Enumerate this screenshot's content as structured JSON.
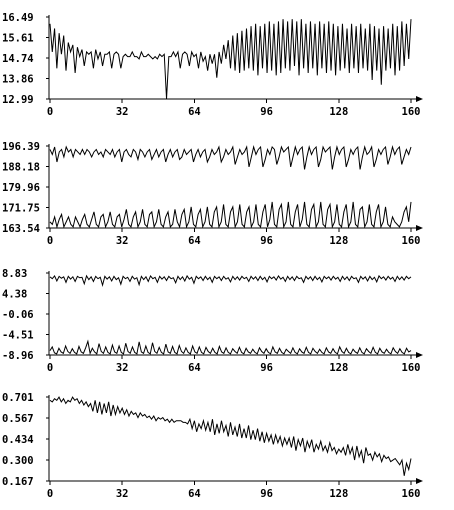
{
  "chart_data": [
    {
      "type": "line",
      "title": "",
      "xlabel": "",
      "ylabel": "",
      "xlim": [
        0,
        160
      ],
      "ylim": [
        12.99,
        16.49
      ],
      "x_ticks": [
        "0",
        "32",
        "64",
        "96",
        "128",
        "160"
      ],
      "y_ticks": [
        "16.49",
        "15.61",
        "14.74",
        "13.86",
        "12.99"
      ],
      "series": [
        {
          "values": [
            16.2,
            15.0,
            16.0,
            14.3,
            15.8,
            14.9,
            15.7,
            14.2,
            15.4,
            15.0,
            15.3,
            14.1,
            15.2,
            14.8,
            15.1,
            14.4,
            15.0,
            14.9,
            15.0,
            14.3,
            15.1,
            14.7,
            15.0,
            14.4,
            14.9,
            14.9,
            15.0,
            14.3,
            14.9,
            15.0,
            14.9,
            14.3,
            14.8,
            14.9,
            14.8,
            14.8,
            15.0,
            14.8,
            14.8,
            14.7,
            15.0,
            14.8,
            14.8,
            14.9,
            14.8,
            14.7,
            14.8,
            14.7,
            14.9,
            14.8,
            14.9,
            13.0,
            14.8,
            14.8,
            15.0,
            14.8,
            15.0,
            14.3,
            14.9,
            15.0,
            14.9,
            14.4,
            15.0,
            14.8,
            14.9,
            14.3,
            15.0,
            14.6,
            14.8,
            14.2,
            14.9,
            14.5,
            14.9,
            13.9,
            15.0,
            14.5,
            15.3,
            14.7,
            15.5,
            14.3,
            15.7,
            14.2,
            15.8,
            14.1,
            15.9,
            14.2,
            16.0,
            14.3,
            16.1,
            14.2,
            16.2,
            14.0,
            16.1,
            14.3,
            16.2,
            14.1,
            16.3,
            14.2,
            16.2,
            14.0,
            16.3,
            14.1,
            16.4,
            14.3,
            16.3,
            14.2,
            16.4,
            14.4,
            16.3,
            14.0,
            16.4,
            14.3,
            16.2,
            14.1,
            16.3,
            14.3,
            16.2,
            14.0,
            16.3,
            14.3,
            16.2,
            14.1,
            16.3,
            14.2,
            16.2,
            14.0,
            16.1,
            14.2,
            16.2,
            14.3,
            16.0,
            14.1,
            16.2,
            14.3,
            16.1,
            14.1,
            16.2,
            14.3,
            16.0,
            14.2,
            16.2,
            13.8,
            16.1,
            14.2,
            16.0,
            13.6,
            16.1,
            14.2,
            16.0,
            14.3,
            16.2,
            14.0,
            16.1,
            14.2,
            16.3,
            14.4,
            16.2,
            14.7,
            16.4
          ]
        }
      ]
    },
    {
      "type": "line",
      "title": "",
      "xlabel": "",
      "ylabel": "",
      "xlim": [
        0,
        160
      ],
      "ylim": [
        163.54,
        196.39
      ],
      "x_ticks": [
        "0",
        "32",
        "64",
        "96",
        "128",
        "160"
      ],
      "y_ticks": [
        "196.39",
        "188.18",
        "179.96",
        "171.75",
        "163.54"
      ],
      "series": [
        {
          "values": [
            195,
            193,
            196,
            190,
            194,
            195,
            192,
            196,
            194,
            195,
            192,
            195,
            194,
            193,
            195,
            193,
            195,
            194,
            192,
            194,
            195,
            193,
            194,
            192,
            195,
            194,
            193,
            195,
            192,
            194,
            195,
            190,
            194,
            195,
            193,
            192,
            195,
            194,
            191,
            195,
            194,
            192,
            194,
            195,
            191,
            193,
            195,
            192,
            194,
            195,
            190,
            193,
            195,
            192,
            194,
            195,
            191,
            192,
            195,
            193,
            194,
            195,
            190,
            193,
            195,
            192,
            194,
            195,
            190,
            192,
            195,
            193,
            194,
            196,
            190,
            192,
            195,
            193,
            194,
            196,
            189,
            192,
            195,
            193,
            194,
            196,
            188,
            192,
            196,
            193,
            195,
            196,
            188,
            191,
            195,
            193,
            196,
            195,
            189,
            192,
            196,
            194,
            195,
            196,
            188,
            192,
            196,
            193,
            195,
            196,
            187,
            192,
            196,
            193,
            195,
            196,
            188,
            191,
            196,
            194,
            195,
            196,
            187,
            192,
            196,
            193,
            195,
            196,
            188,
            191,
            195,
            193,
            195,
            196,
            187,
            192,
            196,
            193,
            194,
            196,
            188,
            191,
            195,
            193,
            195,
            196,
            189,
            192,
            196,
            193,
            195,
            196,
            189,
            192,
            195,
            193,
            196
          ]
        },
        {
          "values": [
            166,
            165,
            168,
            164,
            167,
            169,
            164,
            166,
            168,
            165,
            164,
            168,
            166,
            164,
            167,
            169,
            165,
            164,
            167,
            170,
            165,
            164,
            168,
            169,
            164,
            166,
            170,
            165,
            164,
            168,
            169,
            164,
            167,
            171,
            165,
            164,
            168,
            170,
            164,
            166,
            171,
            165,
            164,
            169,
            170,
            164,
            166,
            171,
            165,
            164,
            168,
            170,
            164,
            165,
            171,
            166,
            164,
            169,
            171,
            164,
            166,
            172,
            165,
            164,
            169,
            171,
            164,
            166,
            172,
            165,
            164,
            170,
            172,
            164,
            166,
            173,
            165,
            164,
            170,
            172,
            164,
            166,
            173,
            165,
            164,
            170,
            172,
            164,
            166,
            173,
            165,
            164,
            170,
            173,
            164,
            167,
            174,
            165,
            164,
            171,
            173,
            164,
            166,
            174,
            165,
            164,
            170,
            173,
            164,
            167,
            174,
            165,
            164,
            171,
            173,
            164,
            166,
            174,
            165,
            164,
            171,
            173,
            164,
            166,
            173,
            165,
            164,
            170,
            173,
            164,
            166,
            174,
            165,
            164,
            171,
            172,
            164,
            166,
            173,
            165,
            164,
            170,
            173,
            164,
            166,
            172,
            165,
            164,
            168,
            166,
            165,
            164,
            166,
            170,
            172,
            166,
            174
          ]
        }
      ]
    },
    {
      "type": "line",
      "title": "",
      "xlabel": "",
      "ylabel": "",
      "xlim": [
        0,
        160
      ],
      "ylim": [
        -8.96,
        8.83
      ],
      "x_ticks": [
        "0",
        "32",
        "64",
        "96",
        "128",
        "160"
      ],
      "y_ticks": [
        "8.83",
        "4.38",
        "-0.06",
        "-4.51",
        "-8.96"
      ],
      "series": [
        {
          "values": [
            8.0,
            7.6,
            8.2,
            7.1,
            8.1,
            7.7,
            8.0,
            6.8,
            8.1,
            7.5,
            8.0,
            7.0,
            8.1,
            7.8,
            7.9,
            6.5,
            8.2,
            7.4,
            8.0,
            7.0,
            8.1,
            7.6,
            7.9,
            6.2,
            8.1,
            7.5,
            8.0,
            7.1,
            8.1,
            7.4,
            7.8,
            6.4,
            8.1,
            7.6,
            7.9,
            7.0,
            8.1,
            7.5,
            7.8,
            6.3,
            8.1,
            7.4,
            8.0,
            7.0,
            8.2,
            7.6,
            7.9,
            6.8,
            8.1,
            7.5,
            8.0,
            7.2,
            8.1,
            7.6,
            7.8,
            6.7,
            8.1,
            7.4,
            8.0,
            7.1,
            8.2,
            7.5,
            7.9,
            6.6,
            8.1,
            7.6,
            8.0,
            7.2,
            8.1,
            7.4,
            7.9,
            6.8,
            8.1,
            7.6,
            8.0,
            7.2,
            8.1,
            7.5,
            7.8,
            6.9,
            8.1,
            7.4,
            8.0,
            7.3,
            8.1,
            7.6,
            7.9,
            7.0,
            8.1,
            7.5,
            8.0,
            7.2,
            8.1,
            7.4,
            7.9,
            6.9,
            8.1,
            7.6,
            8.0,
            7.3,
            8.2,
            7.5,
            7.9,
            7.0,
            8.1,
            7.4,
            8.0,
            7.2,
            8.1,
            7.6,
            7.8,
            6.8,
            8.1,
            7.5,
            8.0,
            7.2,
            8.1,
            7.4,
            7.9,
            6.9,
            8.1,
            7.6,
            8.0,
            7.3,
            8.1,
            7.5,
            7.9,
            7.0,
            8.1,
            7.4,
            8.0,
            7.2,
            8.1,
            7.6,
            7.8,
            6.8,
            8.1,
            7.5,
            8.0,
            7.1,
            8.1,
            7.4,
            7.9,
            6.9,
            8.2,
            7.6,
            8.0,
            7.3,
            8.1,
            7.5,
            7.9,
            7.0,
            8.1,
            7.4,
            8.0,
            7.3,
            8.1,
            7.6,
            8.0
          ]
        },
        {
          "values": [
            -8.0,
            -7.2,
            -8.5,
            -8.7,
            -7.5,
            -8.3,
            -8.6,
            -7.0,
            -8.2,
            -8.6,
            -7.6,
            -8.4,
            -8.7,
            -7.1,
            -8.3,
            -8.6,
            -7.4,
            -6.0,
            -8.6,
            -7.5,
            -8.3,
            -8.7,
            -6.5,
            -8.2,
            -8.6,
            -7.2,
            -8.4,
            -8.7,
            -6.8,
            -8.3,
            -8.6,
            -7.0,
            -8.4,
            -8.7,
            -6.4,
            -8.2,
            -8.6,
            -7.2,
            -8.4,
            -8.7,
            -6.1,
            -8.3,
            -8.6,
            -7.0,
            -8.4,
            -8.7,
            -6.3,
            -8.2,
            -8.6,
            -7.3,
            -8.4,
            -8.7,
            -6.6,
            -8.3,
            -8.6,
            -7.1,
            -8.4,
            -8.7,
            -6.9,
            -8.2,
            -8.6,
            -7.4,
            -8.4,
            -8.7,
            -7.0,
            -8.3,
            -8.6,
            -7.2,
            -8.4,
            -8.7,
            -7.3,
            -8.2,
            -8.6,
            -7.5,
            -8.4,
            -8.7,
            -7.1,
            -8.3,
            -8.6,
            -7.4,
            -8.4,
            -8.7,
            -7.6,
            -8.2,
            -8.6,
            -7.3,
            -8.4,
            -8.7,
            -7.5,
            -8.3,
            -8.6,
            -7.7,
            -8.4,
            -8.7,
            -7.4,
            -8.2,
            -8.6,
            -7.6,
            -8.4,
            -8.7,
            -7.2,
            -8.3,
            -8.6,
            -7.5,
            -8.4,
            -8.7,
            -7.7,
            -8.2,
            -8.6,
            -7.4,
            -8.4,
            -8.7,
            -7.6,
            -8.3,
            -8.6,
            -7.3,
            -8.4,
            -8.7,
            -7.5,
            -8.2,
            -8.6,
            -7.7,
            -8.4,
            -8.7,
            -7.4,
            -8.3,
            -8.6,
            -7.6,
            -8.4,
            -8.7,
            -7.2,
            -8.2,
            -8.6,
            -7.5,
            -8.4,
            -8.7,
            -7.7,
            -8.3,
            -8.6,
            -7.4,
            -8.4,
            -8.7,
            -7.6,
            -8.2,
            -8.6,
            -7.3,
            -8.4,
            -8.7,
            -7.5,
            -8.3,
            -8.6,
            -7.7,
            -8.4,
            -8.7,
            -7.4,
            -8.2,
            -8.6,
            -7.6,
            -8.4,
            -8.7,
            -7.5,
            -8.3,
            -8.0
          ]
        }
      ]
    },
    {
      "type": "line",
      "title": "",
      "xlabel": "",
      "ylabel": "",
      "xlim": [
        0,
        160
      ],
      "ylim": [
        0.167,
        0.701
      ],
      "x_ticks": [
        "0",
        "32",
        "64",
        "96",
        "128",
        "160"
      ],
      "y_ticks": [
        "0.701",
        "0.567",
        "0.434",
        "0.300",
        "0.167"
      ],
      "series": [
        {
          "values": [
            0.68,
            0.67,
            0.69,
            0.68,
            0.7,
            0.67,
            0.69,
            0.66,
            0.68,
            0.67,
            0.7,
            0.68,
            0.69,
            0.66,
            0.68,
            0.65,
            0.67,
            0.64,
            0.66,
            0.61,
            0.68,
            0.6,
            0.67,
            0.59,
            0.66,
            0.6,
            0.67,
            0.58,
            0.65,
            0.59,
            0.64,
            0.6,
            0.63,
            0.59,
            0.62,
            0.58,
            0.61,
            0.59,
            0.6,
            0.57,
            0.6,
            0.58,
            0.59,
            0.57,
            0.58,
            0.56,
            0.58,
            0.55,
            0.57,
            0.56,
            0.57,
            0.55,
            0.56,
            0.54,
            0.56,
            0.54,
            0.55,
            0.55,
            0.55,
            0.54,
            0.54,
            0.53,
            0.56,
            0.5,
            0.55,
            0.48,
            0.53,
            0.5,
            0.55,
            0.49,
            0.54,
            0.48,
            0.56,
            0.46,
            0.53,
            0.47,
            0.55,
            0.48,
            0.52,
            0.45,
            0.54,
            0.46,
            0.51,
            0.45,
            0.53,
            0.44,
            0.5,
            0.44,
            0.52,
            0.43,
            0.49,
            0.43,
            0.5,
            0.42,
            0.48,
            0.41,
            0.47,
            0.42,
            0.46,
            0.4,
            0.46,
            0.41,
            0.45,
            0.39,
            0.44,
            0.4,
            0.44,
            0.38,
            0.45,
            0.36,
            0.43,
            0.39,
            0.44,
            0.35,
            0.42,
            0.38,
            0.43,
            0.35,
            0.4,
            0.37,
            0.42,
            0.36,
            0.39,
            0.35,
            0.41,
            0.36,
            0.38,
            0.34,
            0.37,
            0.35,
            0.38,
            0.33,
            0.4,
            0.34,
            0.38,
            0.3,
            0.39,
            0.32,
            0.36,
            0.28,
            0.38,
            0.33,
            0.34,
            0.3,
            0.35,
            0.32,
            0.34,
            0.29,
            0.33,
            0.31,
            0.32,
            0.29,
            0.3,
            0.31,
            0.29,
            0.27,
            0.3,
            0.2,
            0.28,
            0.24,
            0.31
          ]
        }
      ]
    }
  ]
}
